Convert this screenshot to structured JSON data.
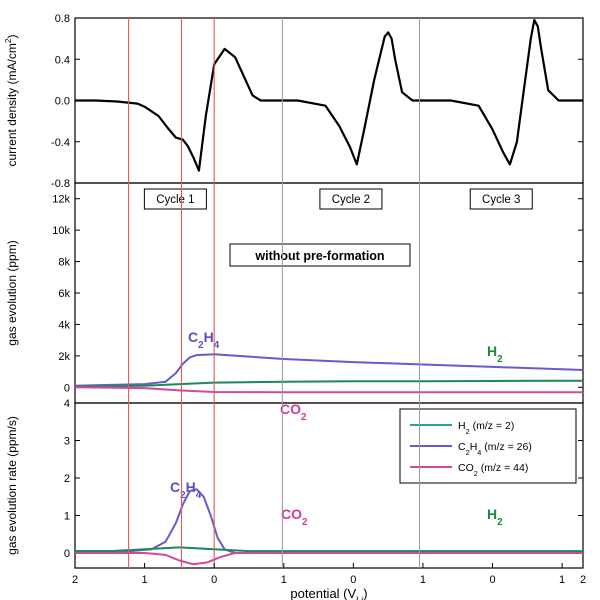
{
  "chart_data": [
    {
      "panel": "top",
      "type": "line",
      "ylabel": "current density (mA/cm²)",
      "ylim": [
        -0.8,
        0.8
      ],
      "yticks": [
        "0.8",
        "0.4",
        "0.0",
        "-0.4",
        "-0.8"
      ],
      "cycle_labels": [
        "Cycle 1",
        "Cycle 2",
        "Cycle 3"
      ],
      "series": [
        {
          "color": "#000000",
          "x": [
            0,
            0.3,
            0.6,
            0.9,
            1.0,
            1.2,
            1.35,
            1.45,
            1.55,
            1.62,
            1.7,
            1.78,
            1.88,
            2.0,
            2.15,
            2.3,
            2.45,
            2.55,
            2.62,
            2.67,
            2.8,
            3.2,
            3.6,
            3.8,
            3.95,
            4.05,
            4.15,
            4.3,
            4.45,
            4.5,
            4.55,
            4.6,
            4.7,
            4.85,
            5.0,
            5.4,
            5.8,
            6.0,
            6.15,
            6.25,
            6.35,
            6.45,
            6.55,
            6.6,
            6.65,
            6.7,
            6.8,
            6.95,
            7.1,
            7.3
          ],
          "y": [
            0.0,
            0.0,
            -0.01,
            -0.03,
            -0.06,
            -0.15,
            -0.28,
            -0.36,
            -0.38,
            -0.44,
            -0.55,
            -0.68,
            -0.15,
            0.35,
            0.5,
            0.42,
            0.2,
            0.05,
            0.02,
            0.0,
            0.0,
            0.0,
            -0.05,
            -0.25,
            -0.45,
            -0.62,
            -0.3,
            0.2,
            0.62,
            0.66,
            0.6,
            0.4,
            0.08,
            0.0,
            0.0,
            0.0,
            -0.05,
            -0.28,
            -0.5,
            -0.62,
            -0.4,
            0.1,
            0.6,
            0.78,
            0.72,
            0.5,
            0.1,
            0.0,
            0.0,
            0.0
          ]
        }
      ]
    },
    {
      "panel": "middle",
      "type": "line",
      "ylabel": "gas evolution (ppm)",
      "ylim": [
        -1000,
        13000
      ],
      "yticks": [
        "12k",
        "10k",
        "8k",
        "6k",
        "4k",
        "2k",
        "0"
      ],
      "annotation": "without pre-formation",
      "series_labels": {
        "C2H4": {
          "main": "C",
          "sub1": "2",
          "mid": "H",
          "sub2": "4"
        },
        "H2": {
          "main": "H",
          "sub1": "2"
        },
        "CO2": {
          "main": "CO",
          "sub1": "2"
        }
      },
      "series": [
        {
          "name": "C2H4 (m/z = 26)",
          "color": "#6a5acd",
          "x": [
            0,
            0.5,
            1.0,
            1.3,
            1.45,
            1.55,
            1.65,
            1.75,
            2.0,
            2.5,
            3.0,
            4.0,
            5.0,
            6.0,
            7.0,
            7.3
          ],
          "y": [
            100,
            150,
            200,
            350,
            900,
            1500,
            1900,
            2050,
            2100,
            1950,
            1800,
            1600,
            1450,
            1300,
            1150,
            1100
          ]
        },
        {
          "name": "H2 (m/z = 2)",
          "color": "#1b8a5a",
          "x": [
            0,
            1.0,
            1.5,
            2.0,
            3.0,
            4.0,
            5.0,
            6.0,
            7.0,
            7.3
          ],
          "y": [
            50,
            100,
            200,
            300,
            350,
            380,
            380,
            400,
            420,
            420
          ]
        },
        {
          "name": "CO2 (m/z = 44)",
          "color": "#d4489a",
          "x": [
            0,
            1.0,
            1.5,
            2.0,
            3.0,
            4.0,
            5.0,
            6.0,
            7.0,
            7.3
          ],
          "y": [
            0,
            -50,
            -200,
            -300,
            -320,
            -320,
            -320,
            -320,
            -320,
            -320
          ]
        }
      ]
    },
    {
      "panel": "bottom",
      "type": "line",
      "ylabel": "gas evolution rate (ppm/s)",
      "ylim": [
        -0.4,
        4
      ],
      "yticks": [
        "4",
        "3",
        "2",
        "1",
        "0"
      ],
      "legend_position": "right",
      "legend": [
        {
          "main": "H",
          "sub": "2",
          "rest": " (m/z = 2)",
          "color": "#2aa39a"
        },
        {
          "main": "C",
          "sub": "2",
          "mid": "H",
          "sub2": "4",
          "rest": " (m/z = 26)",
          "color": "#6a5acd"
        },
        {
          "main": "CO",
          "sub": "2",
          "rest": " (m/z = 44)",
          "color": "#d4489a"
        }
      ],
      "series": [
        {
          "name": "C2H4 (m/z = 26)",
          "color": "#6a5acd",
          "x": [
            0,
            0.8,
            1.1,
            1.3,
            1.45,
            1.55,
            1.65,
            1.75,
            1.85,
            1.95,
            2.05,
            2.15,
            2.3,
            3.0,
            4.0,
            5.0,
            6.0,
            7.3
          ],
          "y": [
            0.05,
            0.05,
            0.1,
            0.3,
            0.8,
            1.3,
            1.65,
            1.7,
            1.5,
            1.0,
            0.4,
            0.1,
            0.0,
            0.0,
            0.0,
            0.0,
            0.0,
            0.0
          ]
        },
        {
          "name": "H2 (m/z = 2)",
          "color": "#1b8a5a",
          "x": [
            0,
            0.5,
            1.0,
            1.5,
            2.0,
            2.5,
            3.0,
            4.0,
            5.0,
            6.0,
            7.0,
            7.3
          ],
          "y": [
            0.05,
            0.05,
            0.1,
            0.15,
            0.1,
            0.05,
            0.05,
            0.05,
            0.05,
            0.05,
            0.05,
            0.05
          ]
        },
        {
          "name": "CO2 (m/z = 44)",
          "color": "#d4489a",
          "x": [
            0,
            1.0,
            1.3,
            1.5,
            1.7,
            1.9,
            2.1,
            2.3,
            3.0,
            5.0,
            7.3
          ],
          "y": [
            0.0,
            0.0,
            -0.05,
            -0.2,
            -0.3,
            -0.25,
            -0.1,
            0.0,
            0.0,
            0.0,
            0.0
          ]
        }
      ]
    }
  ],
  "x_axis": {
    "xlabel_main": "potential (V",
    "xlabel_sub": "Li",
    "xlabel_end": ")",
    "xlim": [
      0,
      7.3
    ],
    "ticks": [
      {
        "x": 0,
        "label": "2"
      },
      {
        "x": 1,
        "label": "1"
      },
      {
        "x": 2,
        "label": "0"
      },
      {
        "x": 3,
        "label": "1"
      },
      {
        "x": 4,
        "label": "0"
      },
      {
        "x": 5,
        "label": "1"
      },
      {
        "x": 6,
        "label": "0"
      },
      {
        "x": 7,
        "label": "1"
      },
      {
        "x": 7.3,
        "label": "2"
      }
    ],
    "red_lines_x": [
      0.77,
      1.53,
      2.0
    ],
    "gray_lines_x": [
      2.98,
      4.95
    ],
    "colors": {
      "red_line": "#e05a5a",
      "gray_line": "#999999"
    }
  }
}
